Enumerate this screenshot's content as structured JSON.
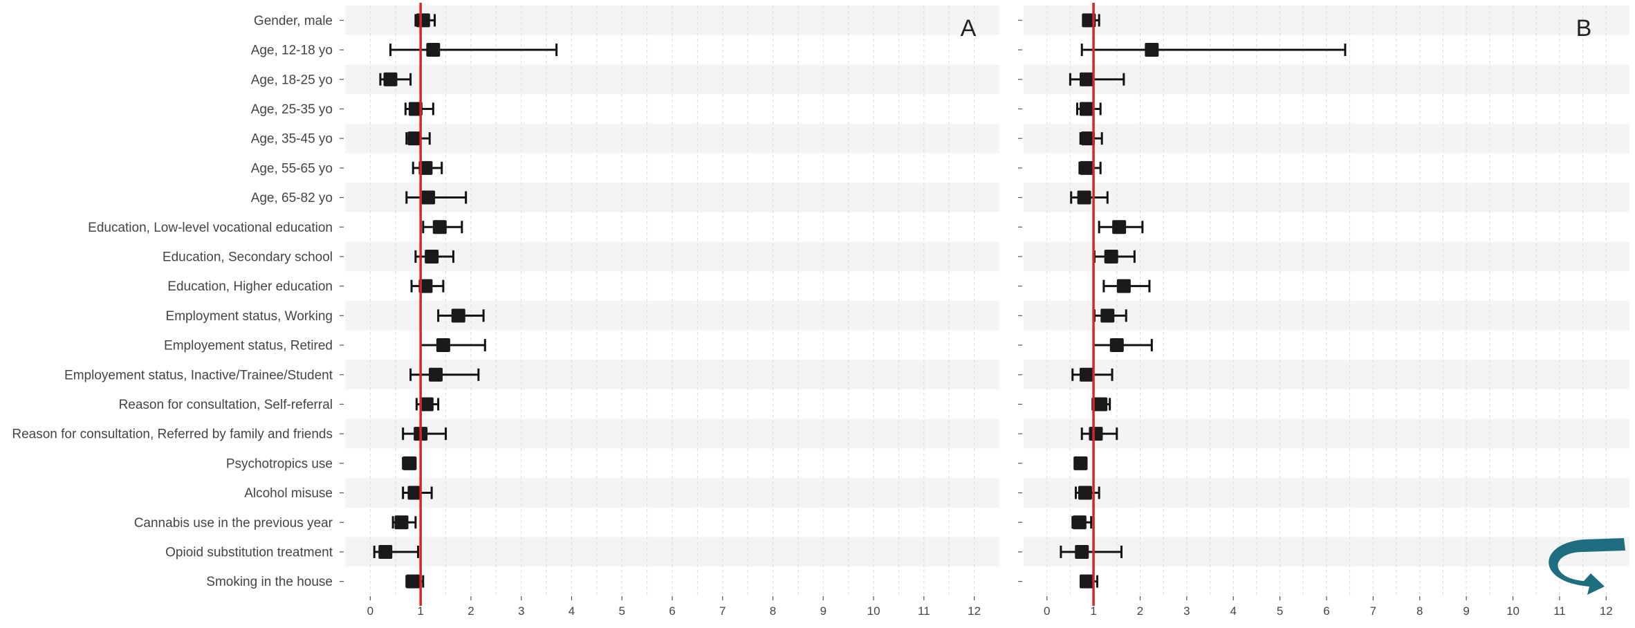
{
  "chart_data": [
    {
      "type": "forest",
      "panel_label": "A",
      "categories": [
        "Gender, male",
        "Age, 12-18 yo",
        "Age, 18-25 yo",
        "Age, 25-35 yo",
        "Age, 35-45 yo",
        "Age, 55-65 yo",
        "Age, 65-82 yo",
        "Education, Low-level vocational education",
        "Education, Secondary school",
        "Education, Higher education",
        "Employment status, Working",
        "Employement status, Retired",
        "Employement status, Inactive/Trainee/Student",
        "Reason for consultation, Self-referral",
        "Reason for consultation, Referred by family and friends",
        "Psychotropics use",
        "Alcohol misuse",
        "Cannabis use in the previous year",
        "Opioid substitution treatment",
        "Smoking in the house"
      ],
      "estimate": [
        1.05,
        1.25,
        0.4,
        0.9,
        0.88,
        1.1,
        1.15,
        1.38,
        1.22,
        1.1,
        1.75,
        1.45,
        1.3,
        1.12,
        1.0,
        0.78,
        0.88,
        0.62,
        0.3,
        0.85
      ],
      "ci_low": [
        0.9,
        0.4,
        0.2,
        0.7,
        0.72,
        0.85,
        0.72,
        1.05,
        0.9,
        0.82,
        1.35,
        1.0,
        0.8,
        0.92,
        0.65,
        0.65,
        0.65,
        0.45,
        0.08,
        0.72
      ],
      "ci_high": [
        1.28,
        3.7,
        0.8,
        1.25,
        1.18,
        1.42,
        1.9,
        1.82,
        1.65,
        1.45,
        2.25,
        2.28,
        2.15,
        1.35,
        1.5,
        0.9,
        1.22,
        0.9,
        0.95,
        1.05
      ],
      "reference_line": 1,
      "xlim": [
        -0.5,
        12.5
      ],
      "xticks": [
        0,
        1,
        2,
        3,
        4,
        5,
        6,
        7,
        8,
        9,
        10,
        11,
        12
      ],
      "title": "",
      "xlabel": "",
      "ylabel": "",
      "grid": true
    },
    {
      "type": "forest",
      "panel_label": "B",
      "categories": [
        "Gender, male",
        "Age, 12-18 yo",
        "Age, 18-25 yo",
        "Age, 25-35 yo",
        "Age, 35-45 yo",
        "Age, 55-65 yo",
        "Age, 65-82 yo",
        "Education, Low-level vocational education",
        "Education, Secondary school",
        "Education, Higher education",
        "Employment status, Working",
        "Employement status, Retired",
        "Employement status, Inactive/Trainee/Student",
        "Reason for consultation, Self-referral",
        "Reason for consultation, Referred by family and friends",
        "Psychotropics use",
        "Alcohol misuse",
        "Cannabis use in the previous year",
        "Opioid substitution treatment",
        "Smoking in the house"
      ],
      "estimate": [
        0.9,
        2.25,
        0.85,
        0.85,
        0.88,
        0.85,
        0.8,
        1.55,
        1.38,
        1.65,
        1.3,
        1.5,
        0.85,
        1.15,
        1.05,
        0.72,
        0.82,
        0.7,
        0.75,
        0.85
      ],
      "ci_low": [
        0.82,
        0.75,
        0.5,
        0.65,
        0.72,
        0.7,
        0.52,
        1.12,
        1.02,
        1.22,
        1.02,
        1.0,
        0.55,
        0.98,
        0.75,
        0.62,
        0.62,
        0.55,
        0.3,
        0.75
      ],
      "ci_high": [
        1.12,
        6.4,
        1.65,
        1.15,
        1.18,
        1.15,
        1.3,
        2.05,
        1.88,
        2.2,
        1.7,
        2.25,
        1.4,
        1.35,
        1.5,
        0.85,
        1.12,
        0.95,
        1.6,
        1.08
      ],
      "reference_line": 1,
      "xlim": [
        -0.5,
        12.5
      ],
      "xticks": [
        0,
        1,
        2,
        3,
        4,
        5,
        6,
        7,
        8,
        9,
        10,
        11,
        12
      ],
      "title": "",
      "xlabel": "",
      "ylabel": "",
      "grid": true
    }
  ],
  "colors": {
    "reference_line": "#d62728",
    "marker": "#1a1a1a",
    "band": "#f4f4f4",
    "grid": "#d9d9d9",
    "logo": "#1f6e80"
  },
  "logo": {
    "icon": "curved-arrow-icon"
  }
}
